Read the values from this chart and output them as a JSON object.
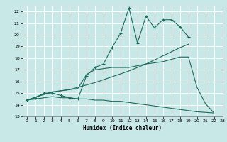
{
  "bg_color": "#c8e8e8",
  "grid_color": "#ffffff",
  "line_color": "#1a6b5a",
  "xlabel": "Humidex (Indice chaleur)",
  "xlim": [
    -0.5,
    23
  ],
  "ylim": [
    13,
    22.5
  ],
  "yticks": [
    13,
    14,
    15,
    16,
    17,
    18,
    19,
    20,
    21,
    22
  ],
  "xticks": [
    0,
    1,
    2,
    3,
    4,
    5,
    6,
    7,
    8,
    9,
    10,
    11,
    12,
    13,
    14,
    15,
    16,
    17,
    18,
    19,
    20,
    21,
    22,
    23
  ],
  "lines": [
    {
      "x": [
        0,
        1,
        2,
        3,
        4,
        5,
        6,
        7,
        8,
        9,
        10,
        11,
        12,
        13,
        14,
        15,
        16,
        17,
        18,
        19
      ],
      "y": [
        14.4,
        14.6,
        15.0,
        15.0,
        14.8,
        14.6,
        14.5,
        16.5,
        17.2,
        17.5,
        18.9,
        20.1,
        22.3,
        19.3,
        21.6,
        20.6,
        21.3,
        21.3,
        20.7,
        19.8
      ],
      "marker": "+"
    },
    {
      "x": [
        0,
        2,
        3,
        5,
        6,
        8,
        10,
        12,
        14,
        16,
        18,
        19
      ],
      "y": [
        14.4,
        14.9,
        15.1,
        15.3,
        15.5,
        15.9,
        16.4,
        16.9,
        17.5,
        18.2,
        18.9,
        19.2
      ],
      "marker": null
    },
    {
      "x": [
        0,
        2,
        3,
        5,
        6,
        7,
        8,
        10,
        12,
        14,
        16,
        17,
        18,
        19,
        20,
        21,
        22
      ],
      "y": [
        14.4,
        14.9,
        15.1,
        15.3,
        15.4,
        16.6,
        17.0,
        17.2,
        17.2,
        17.5,
        17.7,
        17.9,
        18.1,
        18.1,
        15.5,
        14.1,
        13.3
      ],
      "marker": null
    },
    {
      "x": [
        0,
        1,
        2,
        3,
        4,
        5,
        6,
        7,
        8,
        9,
        10,
        11,
        12,
        13,
        14,
        15,
        16,
        17,
        18,
        19,
        20,
        21,
        22
      ],
      "y": [
        14.4,
        14.5,
        14.6,
        14.7,
        14.6,
        14.6,
        14.5,
        14.5,
        14.4,
        14.4,
        14.3,
        14.3,
        14.2,
        14.1,
        14.0,
        13.9,
        13.8,
        13.7,
        13.6,
        13.5,
        13.4,
        13.35,
        13.3
      ],
      "marker": null
    }
  ]
}
